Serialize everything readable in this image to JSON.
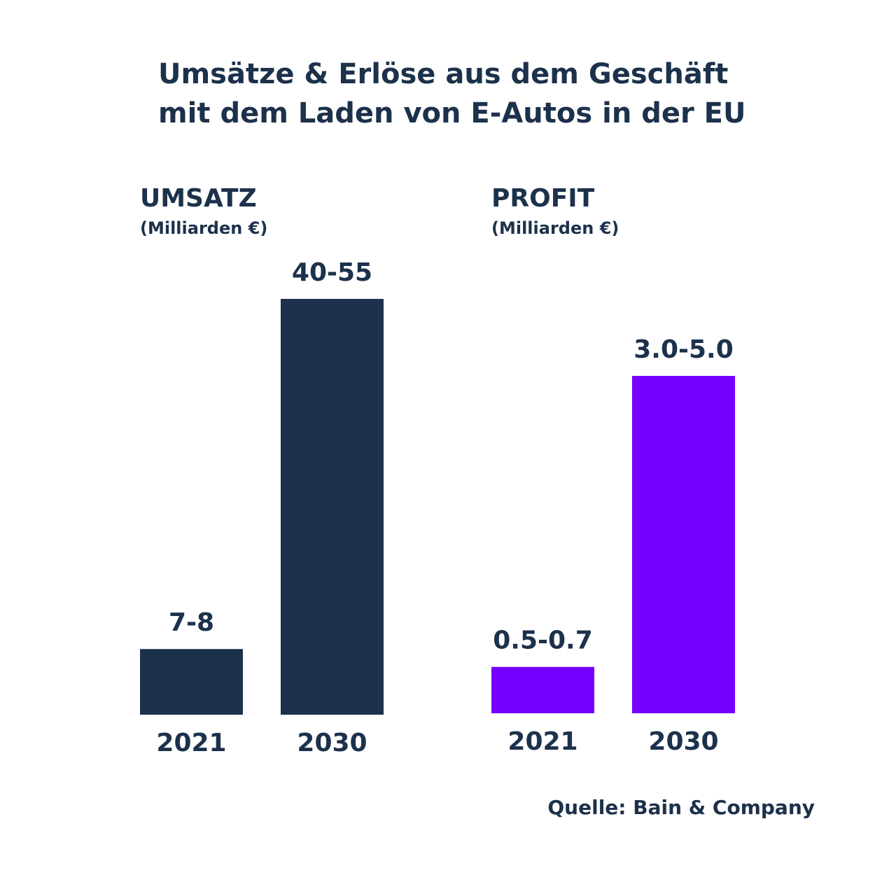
{
  "title_lines": [
    "Umsätze & Erlöse aus dem Geschäft",
    "mit dem Laden von E-Autos in der EU"
  ],
  "colors": {
    "text": "#1c314b",
    "umsatz_bar": "#1c314b",
    "profit_bar": "#7500ff"
  },
  "chart_data": [
    {
      "type": "bar",
      "title": "UMSATZ",
      "ylabel": "(Milliarden €)",
      "categories": [
        "2021",
        "2030"
      ],
      "values": [
        7.5,
        47.5
      ],
      "data_labels": [
        "7-8",
        "40-55"
      ],
      "ylim": [
        0,
        47.5
      ]
    },
    {
      "type": "bar",
      "title": "PROFIT",
      "ylabel": "(Milliarden €)",
      "categories": [
        "2021",
        "2030"
      ],
      "values": [
        0.55,
        4.0
      ],
      "data_labels": [
        "0.5-0.7",
        "3.0-5.0"
      ],
      "ylim": [
        0,
        4.0
      ]
    }
  ],
  "source": "Quelle: Bain & Company"
}
